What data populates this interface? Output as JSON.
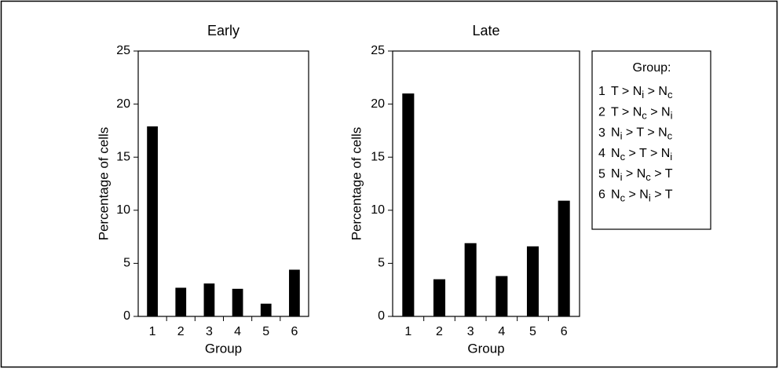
{
  "chart_data": [
    {
      "type": "bar",
      "title": "Early",
      "x_label": "Group",
      "y_label": "Percentage of cells",
      "categories": [
        "1",
        "2",
        "3",
        "4",
        "5",
        "6"
      ],
      "values": [
        17.9,
        2.7,
        3.1,
        2.6,
        1.2,
        4.4
      ],
      "color": "#000000",
      "ylim": [
        0,
        25
      ],
      "yticks": [
        0,
        5,
        10,
        15,
        20,
        25
      ]
    },
    {
      "type": "bar",
      "title": "Late",
      "x_label": "Group",
      "y_label": "Percentage of cells",
      "categories": [
        "1",
        "2",
        "3",
        "4",
        "5",
        "6"
      ],
      "values": [
        21,
        3.5,
        6.9,
        3.8,
        6.6,
        10.9
      ],
      "color": "#000000",
      "ylim": [
        0,
        25
      ],
      "yticks": [
        0,
        5,
        10,
        15,
        20,
        25
      ]
    }
  ],
  "legend": {
    "title": "Group:",
    "items": [
      {
        "number": "1",
        "parts": [
          "T > N",
          "i",
          " > N",
          "c"
        ]
      },
      {
        "number": "2",
        "parts": [
          "T > N",
          "c",
          " > N",
          "i"
        ]
      },
      {
        "number": "3",
        "parts": [
          "N",
          "i",
          " > T > N",
          "c"
        ]
      },
      {
        "number": "4",
        "parts": [
          "N",
          "c",
          " > T > N",
          "i"
        ]
      },
      {
        "number": "5",
        "parts": [
          "N",
          "i",
          " > N",
          "c",
          " > T"
        ]
      },
      {
        "number": "6",
        "parts": [
          "N",
          "c",
          " > N",
          "i",
          " > T"
        ]
      }
    ]
  }
}
